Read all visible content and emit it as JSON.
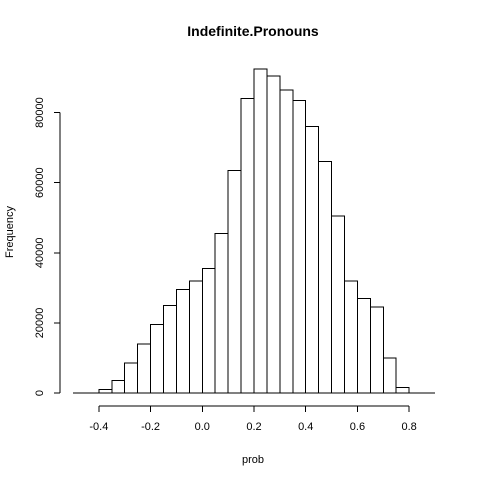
{
  "chart_data": {
    "type": "bar",
    "title": "Indefinite.Pronouns",
    "xlabel": "prob",
    "ylabel": "Frequency",
    "bin_width": 0.05,
    "bins_start": [
      -0.4,
      -0.35,
      -0.3,
      -0.25,
      -0.2,
      -0.15,
      -0.1,
      -0.05,
      0.0,
      0.05,
      0.1,
      0.15,
      0.2,
      0.25,
      0.3,
      0.35,
      0.4,
      0.45,
      0.5,
      0.55,
      0.6,
      0.65,
      0.7,
      0.75
    ],
    "values": [
      1000,
      3500,
      8500,
      14000,
      19500,
      25000,
      29500,
      32000,
      35500,
      45500,
      63500,
      84000,
      92500,
      90500,
      86500,
      83500,
      76000,
      66000,
      50500,
      32000,
      27000,
      24500,
      10000,
      1500
    ],
    "xlim": [
      -0.5,
      0.9
    ],
    "ylim": [
      0,
      95000
    ],
    "x_ticks": [
      -0.4,
      -0.2,
      0.0,
      0.2,
      0.4,
      0.6,
      0.8
    ],
    "x_tick_labels": [
      "-0.4",
      "-0.2",
      "0.0",
      "0.2",
      "0.4",
      "0.6",
      "0.8"
    ],
    "y_ticks": [
      0,
      20000,
      40000,
      60000,
      80000
    ],
    "y_tick_labels": [
      "0",
      "20000",
      "40000",
      "60000",
      "80000"
    ],
    "grid": false
  }
}
